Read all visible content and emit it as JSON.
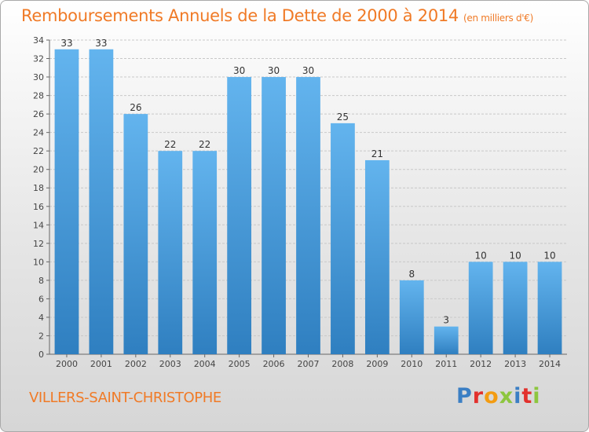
{
  "header": {
    "title": "Remboursements Annuels de la Dette de 2000 à 2014",
    "unit": "(en milliers d'€)"
  },
  "footer": {
    "commune": "VILLERS-SAINT-CHRISTOPHE",
    "brand": "Proxiti",
    "brand_colors": [
      "#3b7fc4",
      "#e2312d",
      "#f39c12",
      "#8dc63f",
      "#3b7fc4",
      "#e2312d",
      "#8dc63f"
    ]
  },
  "colors": {
    "title": "#f07a26",
    "bar_top": "#63b4ee",
    "bar_bottom": "#2f7fc0",
    "grid": "#c8c8c8"
  },
  "chart_data": {
    "type": "bar",
    "title": "Remboursements Annuels de la Dette de 2000 à 2014",
    "xlabel": "",
    "ylabel": "",
    "categories": [
      "2000",
      "2001",
      "2002",
      "2003",
      "2004",
      "2005",
      "2006",
      "2007",
      "2008",
      "2009",
      "2010",
      "2011",
      "2012",
      "2013",
      "2014"
    ],
    "values": [
      33,
      33,
      26,
      22,
      22,
      30,
      30,
      30,
      25,
      21,
      8,
      3,
      10,
      10,
      10
    ],
    "ylim": [
      0,
      34
    ],
    "yticks": [
      0,
      2,
      4,
      6,
      8,
      10,
      12,
      14,
      16,
      18,
      20,
      22,
      24,
      26,
      28,
      30,
      32,
      34
    ],
    "grid": true,
    "legend": "none"
  }
}
